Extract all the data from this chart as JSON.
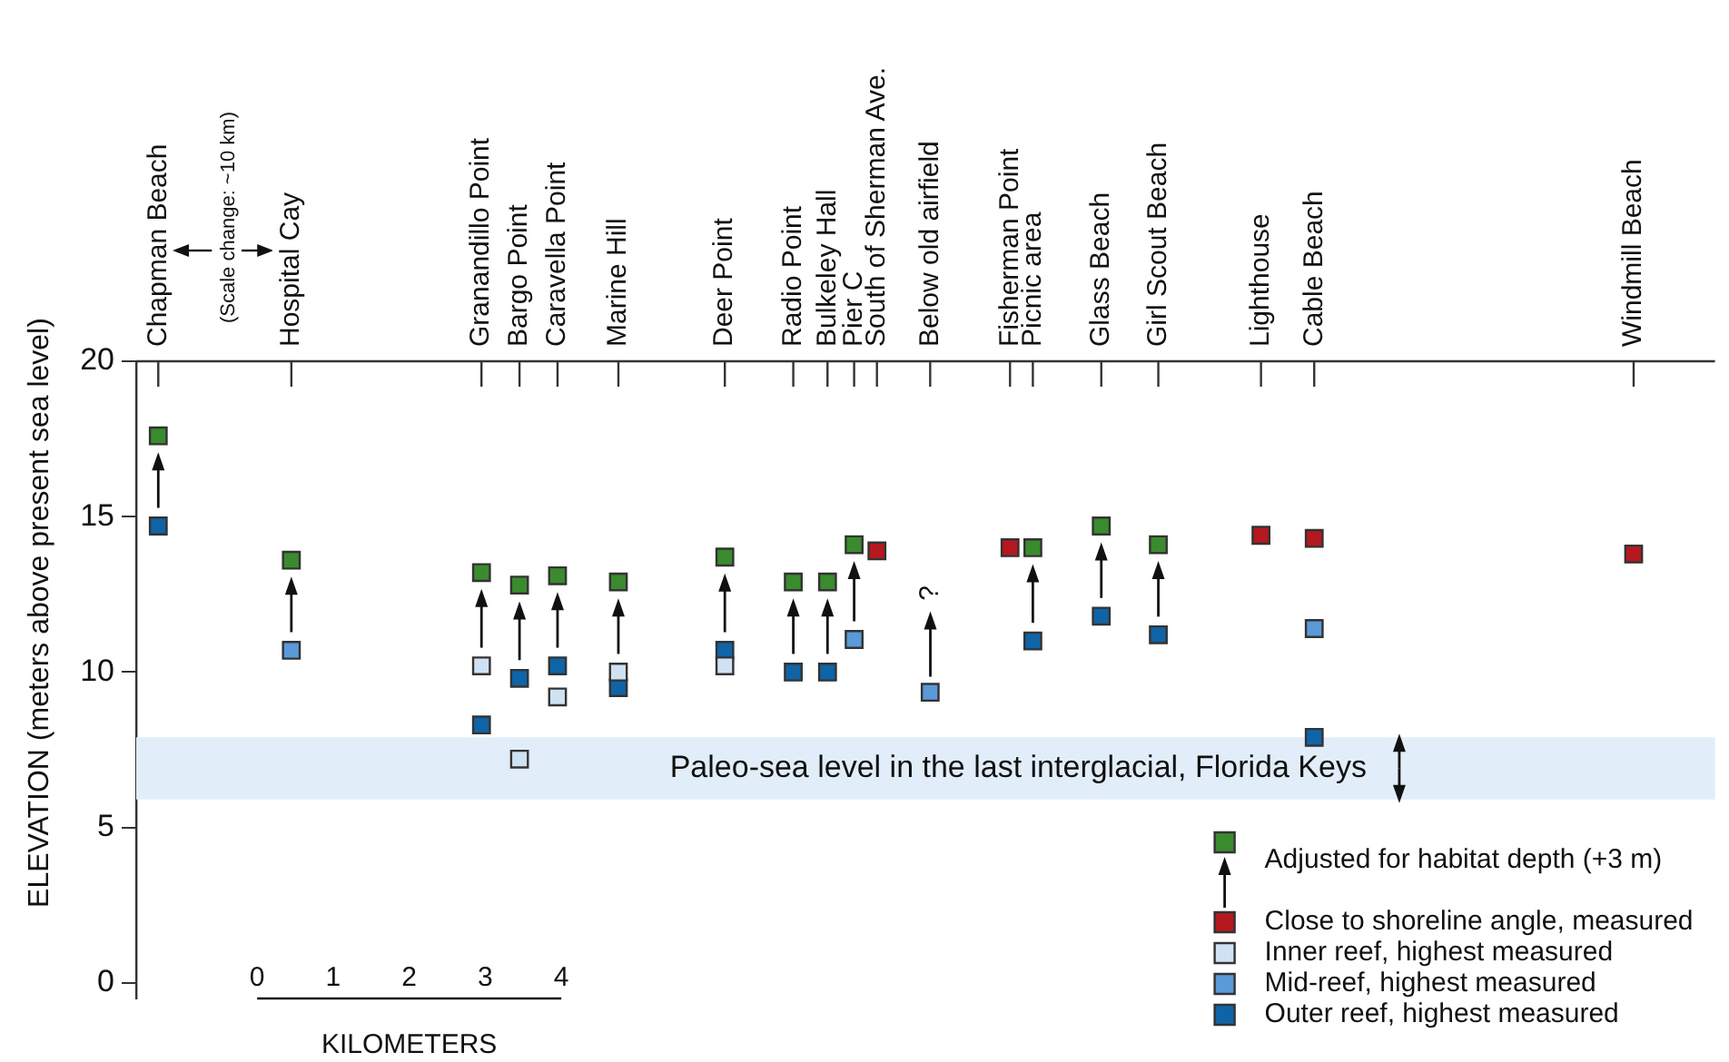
{
  "chart_data": {
    "type": "scatter",
    "ylabel": "ELEVATION (meters above present sea level)",
    "xlabel": "KILOMETERS",
    "xlim": [
      -1.59,
      19.17
    ],
    "xticks": [
      0,
      1,
      2,
      3,
      4
    ],
    "ylim": [
      -0.5,
      20
    ],
    "yticks": [
      0,
      5,
      10,
      15,
      20
    ],
    "grid": false,
    "legend": "bottom right",
    "marker": "square",
    "series": [
      {
        "name": "Adjusted for habitat depth (+3 m)",
        "color": "#3a8a2e",
        "x": [
          -1.3,
          0.45,
          2.95,
          3.45,
          3.95,
          4.75,
          6.15,
          7.05,
          7.5,
          7.85,
          10.2,
          11.1,
          11.85
        ],
        "values": [
          17.6,
          13.6,
          13.2,
          12.8,
          13.1,
          12.9,
          13.7,
          12.9,
          12.9,
          14.1,
          14.0,
          14.7,
          14.1
        ]
      },
      {
        "name": "Close to shoreline angle, measured",
        "color": "#b5191f",
        "x": [
          8.15,
          9.9,
          13.2,
          13.9,
          18.1
        ],
        "values": [
          13.9,
          14.0,
          14.4,
          14.3,
          13.8
        ]
      },
      {
        "name": "Inner reef, highest measured",
        "color": "#cfe2f3",
        "x": [
          2.95,
          3.45,
          3.95,
          4.75,
          6.15
        ],
        "values": [
          10.2,
          7.2,
          9.2,
          10.0,
          10.2
        ]
      },
      {
        "name": "Mid-reef, highest measured",
        "color": "#5a9ad8",
        "x": [
          0.45,
          7.85,
          8.85,
          13.9
        ],
        "values": [
          10.7,
          11.05,
          9.35,
          11.4
        ]
      },
      {
        "name": "Outer reef, highest measured",
        "color": "#0f64a8",
        "x": [
          -1.3,
          2.95,
          3.45,
          3.95,
          4.75,
          6.15,
          7.05,
          7.5,
          10.2,
          11.1,
          11.85,
          13.9
        ],
        "values": [
          14.7,
          8.3,
          9.8,
          10.2,
          9.5,
          10.7,
          10.0,
          10.0,
          11.0,
          11.8,
          11.2,
          7.9
        ]
      }
    ],
    "bands": [
      {
        "axis": "y",
        "from": 5.9,
        "to": 7.9,
        "label": "Paleo-sea level in the last interglacial, Florida Keys",
        "color": "#e1eef9"
      }
    ],
    "annotations": [
      "(Scale change: ~10 km)",
      "?",
      {
        "text": "Chapman Beach",
        "x": -1.3
      },
      {
        "text": "Hospital Cay",
        "x": 0.45
      },
      {
        "text": "Granandillo Point",
        "x": 2.95
      },
      {
        "text": "Bargo Point",
        "x": 3.45
      },
      {
        "text": "Caravella Point",
        "x": 3.95
      },
      {
        "text": "Marine Hill",
        "x": 4.75
      },
      {
        "text": "Deer Point",
        "x": 6.15
      },
      {
        "text": "Radio Point",
        "x": 7.05
      },
      {
        "text": "Bulkeley Hall",
        "x": 7.5
      },
      {
        "text": "Pier C",
        "x": 7.85
      },
      {
        "text": "South of Sherman Ave.",
        "x": 8.15
      },
      {
        "text": "Below old airfield",
        "x": 8.85
      },
      {
        "text": "Fisherman Point",
        "x": 9.9
      },
      {
        "text": "Picnic area",
        "x": 10.2
      },
      {
        "text": "Glass Beach",
        "x": 11.1
      },
      {
        "text": "Girl Scout Beach",
        "x": 11.85
      },
      {
        "text": "Lighthouse",
        "x": 13.2
      },
      {
        "text": "Cable Beach",
        "x": 13.9
      },
      {
        "text": "Windmill Beach",
        "x": 18.1
      }
    ]
  }
}
